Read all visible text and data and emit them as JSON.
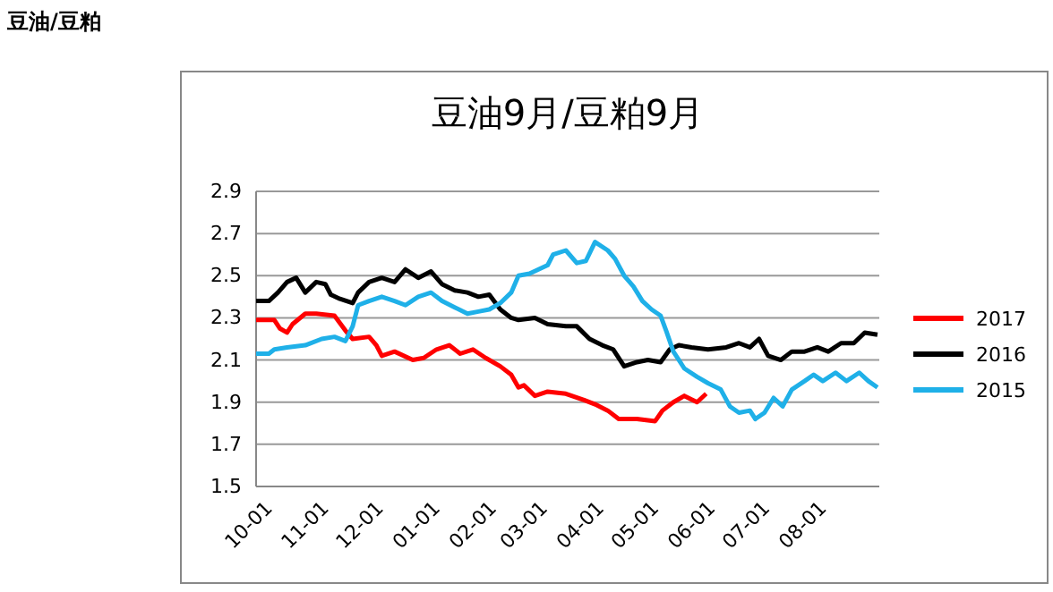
{
  "chart_data": {
    "type": "line",
    "title": "豆油9月/豆粕9月",
    "annotations": [
      "豆油/豆粕"
    ],
    "xlim": [
      "2016-10-01",
      "2017-09-08"
    ],
    "xticks": [
      {
        "value": "2016-10-01",
        "label": "10-01"
      },
      {
        "value": "2016-11-01",
        "label": "11-01"
      },
      {
        "value": "2016-12-01",
        "label": "12-01"
      },
      {
        "value": "2017-01-01",
        "label": "01-01"
      },
      {
        "value": "2017-02-01",
        "label": "02-01"
      },
      {
        "value": "2017-03-01",
        "label": "03-01"
      },
      {
        "value": "2017-04-01",
        "label": "04-01"
      },
      {
        "value": "2017-05-01",
        "label": "05-01"
      },
      {
        "value": "2017-06-01",
        "label": "06-01"
      },
      {
        "value": "2017-07-01",
        "label": "07-01"
      },
      {
        "value": "2017-08-01",
        "label": "08-01"
      }
    ],
    "ylim": [
      1.5,
      2.9
    ],
    "yticks": [
      {
        "value": 1.5,
        "label": "1.5"
      },
      {
        "value": 1.7,
        "label": "1.7"
      },
      {
        "value": 1.9,
        "label": "1.9"
      },
      {
        "value": 2.1,
        "label": "2.1"
      },
      {
        "value": 2.3,
        "label": "2.3"
      },
      {
        "value": 2.5,
        "label": "2.5"
      },
      {
        "value": 2.7,
        "label": "2.7"
      },
      {
        "value": 2.9,
        "label": "2.9"
      }
    ],
    "grid": "y",
    "legend": "right",
    "marker": "none",
    "line_style": "solid",
    "series": [
      {
        "name": "2017",
        "color": "#ff0000",
        "x": [
          "2016-10-01",
          "2016-10-11",
          "2016-10-14",
          "2016-10-18",
          "2016-10-21",
          "2016-10-28",
          "2016-11-03",
          "2016-11-13",
          "2016-11-19",
          "2016-11-23",
          "2016-12-02",
          "2016-12-06",
          "2016-12-09",
          "2016-12-16",
          "2016-12-26",
          "2017-01-01",
          "2017-01-08",
          "2017-01-15",
          "2017-01-21",
          "2017-01-28",
          "2017-02-04",
          "2017-02-12",
          "2017-02-18",
          "2017-02-22",
          "2017-02-25",
          "2017-03-03",
          "2017-03-10",
          "2017-03-20",
          "2017-03-30",
          "2017-04-05",
          "2017-04-12",
          "2017-04-18",
          "2017-04-28",
          "2017-05-08",
          "2017-05-12",
          "2017-05-18",
          "2017-05-24",
          "2017-05-31",
          "2017-06-05"
        ],
        "values": [
          2.29,
          2.29,
          2.25,
          2.23,
          2.27,
          2.32,
          2.32,
          2.31,
          2.24,
          2.2,
          2.21,
          2.17,
          2.12,
          2.14,
          2.1,
          2.11,
          2.15,
          2.17,
          2.13,
          2.15,
          2.11,
          2.07,
          2.03,
          1.97,
          1.98,
          1.93,
          1.95,
          1.94,
          1.91,
          1.89,
          1.86,
          1.82,
          1.82,
          1.81,
          1.86,
          1.9,
          1.93,
          1.9,
          1.94
        ]
      },
      {
        "name": "2016",
        "color": "#000000",
        "x": [
          "2016-10-01",
          "2016-10-08",
          "2016-10-13",
          "2016-10-18",
          "2016-10-23",
          "2016-10-28",
          "2016-11-03",
          "2016-11-08",
          "2016-11-11",
          "2016-11-16",
          "2016-11-23",
          "2016-11-26",
          "2016-12-02",
          "2016-12-09",
          "2016-12-16",
          "2016-12-22",
          "2016-12-29",
          "2017-01-05",
          "2017-01-11",
          "2017-01-18",
          "2017-01-25",
          "2017-01-31",
          "2017-02-06",
          "2017-02-12",
          "2017-02-18",
          "2017-02-22",
          "2017-03-03",
          "2017-03-10",
          "2017-03-20",
          "2017-03-26",
          "2017-04-02",
          "2017-04-09",
          "2017-04-15",
          "2017-04-21",
          "2017-04-28",
          "2017-05-04",
          "2017-05-11",
          "2017-05-16",
          "2017-05-21",
          "2017-05-28",
          "2017-06-06",
          "2017-06-16",
          "2017-06-23",
          "2017-06-29",
          "2017-07-04",
          "2017-07-09",
          "2017-07-16",
          "2017-07-22",
          "2017-07-29",
          "2017-08-05",
          "2017-08-11",
          "2017-08-18",
          "2017-08-25",
          "2017-08-31",
          "2017-09-07"
        ],
        "values": [
          2.38,
          2.38,
          2.42,
          2.47,
          2.49,
          2.42,
          2.47,
          2.46,
          2.41,
          2.39,
          2.37,
          2.42,
          2.47,
          2.49,
          2.47,
          2.53,
          2.49,
          2.52,
          2.46,
          2.43,
          2.42,
          2.4,
          2.41,
          2.34,
          2.3,
          2.29,
          2.3,
          2.27,
          2.26,
          2.26,
          2.2,
          2.17,
          2.15,
          2.07,
          2.09,
          2.1,
          2.09,
          2.15,
          2.17,
          2.16,
          2.15,
          2.16,
          2.18,
          2.16,
          2.2,
          2.12,
          2.1,
          2.14,
          2.14,
          2.16,
          2.14,
          2.18,
          2.18,
          2.23,
          2.22
        ]
      },
      {
        "name": "2015",
        "color": "#1fb0e8",
        "x": [
          "2016-10-01",
          "2016-10-08",
          "2016-10-11",
          "2016-10-18",
          "2016-10-28",
          "2016-11-06",
          "2016-11-13",
          "2016-11-19",
          "2016-11-23",
          "2016-11-26",
          "2016-12-02",
          "2016-12-09",
          "2016-12-16",
          "2016-12-22",
          "2016-12-29",
          "2017-01-05",
          "2017-01-11",
          "2017-01-18",
          "2017-01-25",
          "2017-01-31",
          "2017-02-06",
          "2017-02-12",
          "2017-02-18",
          "2017-02-22",
          "2017-02-28",
          "2017-03-10",
          "2017-03-13",
          "2017-03-20",
          "2017-03-26",
          "2017-03-31",
          "2017-04-05",
          "2017-04-12",
          "2017-04-16",
          "2017-04-21",
          "2017-04-26",
          "2017-05-01",
          "2017-05-06",
          "2017-05-11",
          "2017-05-14",
          "2017-05-18",
          "2017-05-24",
          "2017-05-31",
          "2017-06-06",
          "2017-06-13",
          "2017-06-18",
          "2017-06-23",
          "2017-06-29",
          "2017-07-02",
          "2017-07-07",
          "2017-07-12",
          "2017-07-17",
          "2017-07-22",
          "2017-07-29",
          "2017-08-03",
          "2017-08-08",
          "2017-08-15",
          "2017-08-21",
          "2017-08-28",
          "2017-09-02",
          "2017-09-07"
        ],
        "values": [
          2.13,
          2.13,
          2.15,
          2.16,
          2.17,
          2.2,
          2.21,
          2.19,
          2.26,
          2.36,
          2.38,
          2.4,
          2.38,
          2.36,
          2.4,
          2.42,
          2.38,
          2.35,
          2.32,
          2.33,
          2.34,
          2.37,
          2.42,
          2.5,
          2.51,
          2.55,
          2.6,
          2.62,
          2.56,
          2.57,
          2.66,
          2.62,
          2.58,
          2.5,
          2.45,
          2.38,
          2.34,
          2.31,
          2.24,
          2.14,
          2.06,
          2.02,
          1.99,
          1.96,
          1.88,
          1.85,
          1.86,
          1.82,
          1.85,
          1.92,
          1.88,
          1.96,
          2.0,
          2.03,
          2.0,
          2.04,
          2.0,
          2.04,
          2.0,
          1.97
        ]
      }
    ]
  }
}
